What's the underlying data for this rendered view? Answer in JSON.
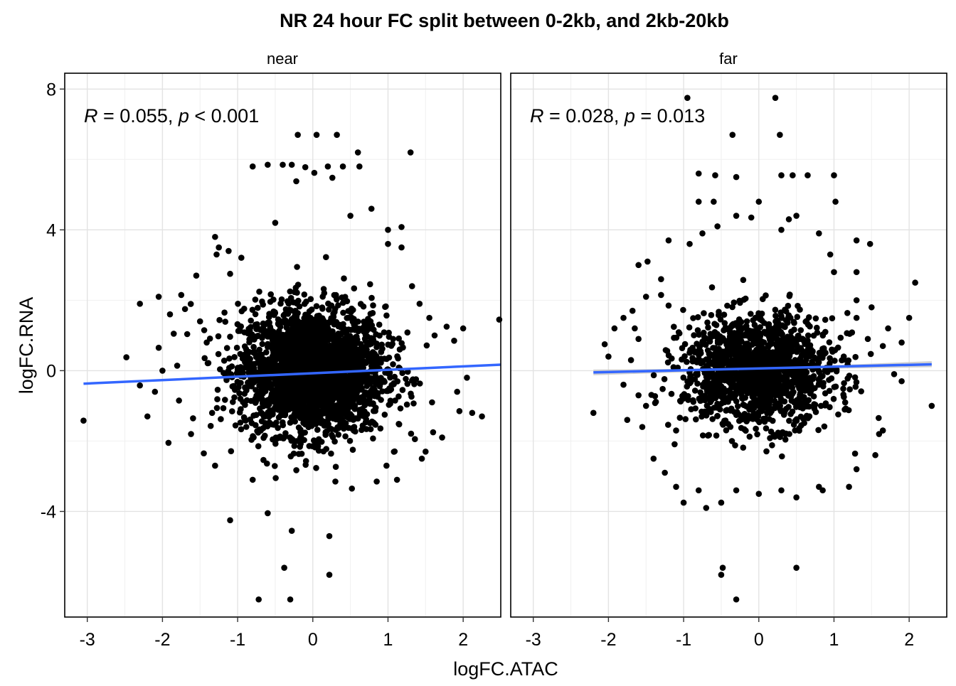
{
  "chart_data": {
    "type": "scatter",
    "title": "NR 24 hour FC split between 0-2kb, and 2kb-20kb",
    "xlabel": "logFC.ATAC",
    "ylabel": "logFC.RNA",
    "xlim": [
      -3.3,
      2.5
    ],
    "ylim": [
      -7.0,
      8.45
    ],
    "x_ticks": [
      -3,
      -2,
      -1,
      0,
      1,
      2
    ],
    "y_ticks": [
      -4,
      0,
      4,
      8
    ],
    "x_tick_labels": [
      "-3",
      "-2",
      "-1",
      "0",
      "1",
      "2"
    ],
    "y_tick_labels": [
      "-4",
      "0",
      "4",
      "8"
    ],
    "grid": true,
    "point_color": "#000000",
    "trend_color": "#3366FF",
    "ci_color": "#c8c8c8",
    "panels": [
      {
        "name": "near",
        "annotation": {
          "r_label": "R",
          "r_value": " = 0.055, ",
          "p_label": "p",
          "p_value": " < 0.001"
        },
        "trend": {
          "x": [
            -3.05,
            2.5
          ],
          "y": [
            -0.37,
            0.17
          ]
        },
        "cloud": {
          "center": [
            0.0,
            0.0
          ],
          "sd": [
            0.48,
            0.9
          ],
          "n": 2600,
          "range_x": [
            -2.3,
            2.0
          ],
          "range_y": [
            -3.5,
            4.3
          ]
        },
        "points": [
          [
            -3.05,
            -1.42
          ],
          [
            -2.3,
            1.9
          ],
          [
            -2.48,
            0.38
          ],
          [
            -2.2,
            -1.3
          ],
          [
            -1.92,
            -2.05
          ],
          [
            -1.45,
            -2.35
          ],
          [
            -1.1,
            -4.25
          ],
          [
            -0.6,
            -4.05
          ],
          [
            -0.28,
            -4.55
          ],
          [
            0.22,
            -4.7
          ],
          [
            -0.38,
            -5.6
          ],
          [
            0.22,
            -5.8
          ],
          [
            -0.72,
            -6.5
          ],
          [
            -0.3,
            -6.5
          ],
          [
            -0.2,
            6.7
          ],
          [
            0.05,
            6.7
          ],
          [
            0.32,
            6.7
          ],
          [
            -0.8,
            5.8
          ],
          [
            -0.6,
            5.85
          ],
          [
            -0.4,
            5.85
          ],
          [
            -0.28,
            5.85
          ],
          [
            -0.1,
            5.78
          ],
          [
            0.2,
            5.8
          ],
          [
            0.4,
            5.8
          ],
          [
            0.62,
            5.8
          ],
          [
            0.6,
            6.2
          ],
          [
            1.3,
            6.2
          ],
          [
            -0.22,
            5.38
          ],
          [
            0.02,
            5.62
          ],
          [
            0.26,
            5.48
          ],
          [
            -1.25,
            3.5
          ],
          [
            -1.3,
            3.8
          ],
          [
            -1.28,
            3.3
          ],
          [
            -1.12,
            3.4
          ],
          [
            1.18,
            3.5
          ],
          [
            1.0,
            4.0
          ],
          [
            1.0,
            3.6
          ],
          [
            1.18,
            4.08
          ],
          [
            0.78,
            4.6
          ],
          [
            -1.55,
            2.7
          ],
          [
            -1.75,
            2.15
          ],
          [
            -2.05,
            2.1
          ],
          [
            -1.9,
            1.6
          ],
          [
            -1.85,
            1.05
          ],
          [
            1.42,
            1.9
          ],
          [
            1.55,
            1.5
          ],
          [
            1.78,
            1.25
          ],
          [
            2.0,
            1.2
          ],
          [
            2.48,
            1.45
          ],
          [
            1.88,
            0.85
          ],
          [
            1.6,
            -1.75
          ],
          [
            2.25,
            -1.3
          ],
          [
            2.12,
            -1.2
          ],
          [
            1.95,
            -1.15
          ],
          [
            1.72,
            -1.9
          ],
          [
            1.45,
            -2.5
          ],
          [
            1.12,
            -3.1
          ],
          [
            0.52,
            -3.35
          ],
          [
            0.85,
            -3.15
          ],
          [
            -1.62,
            -1.8
          ],
          [
            -1.78,
            -0.85
          ],
          [
            -2.1,
            -0.6
          ],
          [
            -2.0,
            0.0
          ],
          [
            1.5,
            -2.3
          ],
          [
            -1.7,
            1.75
          ],
          [
            -0.8,
            -3.1
          ],
          [
            0.3,
            -3.15
          ],
          [
            -1.3,
            -2.7
          ],
          [
            0.98,
            -2.7
          ],
          [
            -1.5,
            1.4
          ],
          [
            1.32,
            2.4
          ],
          [
            -1.1,
            2.75
          ],
          [
            1.62,
            1.0
          ],
          [
            -2.05,
            0.65
          ],
          [
            -2.3,
            -0.42
          ],
          [
            1.92,
            -0.6
          ],
          [
            2.05,
            -0.2
          ],
          [
            -0.5,
            4.2
          ],
          [
            0.5,
            4.4
          ]
        ]
      },
      {
        "name": "far",
        "annotation": {
          "r_label": "R",
          "r_value": " = 0.028, ",
          "p_label": "p",
          "p_value": " = 0.013"
        },
        "trend": {
          "x": [
            -2.2,
            2.3
          ],
          "y": [
            -0.05,
            0.18
          ]
        },
        "ci": {
          "x": [
            -2.2,
            0.0,
            2.3
          ],
          "lower": [
            -0.13,
            0.02,
            0.1
          ],
          "upper": [
            0.03,
            0.07,
            0.27
          ]
        },
        "cloud": {
          "center": [
            0.0,
            0.0
          ],
          "sd": [
            0.5,
            0.78
          ],
          "n": 1500,
          "range_x": [
            -1.85,
            1.85
          ],
          "range_y": [
            -3.3,
            3.1
          ]
        },
        "points": [
          [
            -0.95,
            7.75
          ],
          [
            0.22,
            7.75
          ],
          [
            -0.35,
            6.7
          ],
          [
            0.28,
            6.7
          ],
          [
            -0.8,
            5.6
          ],
          [
            -0.58,
            5.55
          ],
          [
            -0.3,
            5.5
          ],
          [
            0.3,
            5.55
          ],
          [
            0.45,
            5.55
          ],
          [
            0.65,
            5.55
          ],
          [
            1.0,
            5.55
          ],
          [
            -0.8,
            4.8
          ],
          [
            -0.6,
            4.8
          ],
          [
            0.0,
            4.8
          ],
          [
            1.02,
            4.8
          ],
          [
            0.5,
            4.4
          ],
          [
            0.4,
            4.3
          ],
          [
            -0.1,
            4.35
          ],
          [
            -0.3,
            4.4
          ],
          [
            -0.75,
            3.9
          ],
          [
            0.8,
            3.9
          ],
          [
            0.3,
            4.0
          ],
          [
            -0.55,
            4.1
          ],
          [
            -1.2,
            3.7
          ],
          [
            -0.92,
            3.6
          ],
          [
            1.3,
            3.7
          ],
          [
            1.48,
            3.6
          ],
          [
            -1.6,
            3.0
          ],
          [
            -1.48,
            3.1
          ],
          [
            0.95,
            3.3
          ],
          [
            1.0,
            2.8
          ],
          [
            -1.5,
            2.1
          ],
          [
            -1.3,
            2.15
          ],
          [
            -1.2,
            1.85
          ],
          [
            -1.68,
            1.7
          ],
          [
            -1.8,
            1.5
          ],
          [
            -1.65,
            1.2
          ],
          [
            -1.92,
            1.2
          ],
          [
            -1.6,
            0.9
          ],
          [
            2.08,
            2.5
          ],
          [
            2.0,
            1.5
          ],
          [
            1.3,
            2.0
          ],
          [
            1.5,
            1.8
          ],
          [
            1.3,
            1.5
          ],
          [
            1.72,
            1.2
          ],
          [
            1.45,
            0.9
          ],
          [
            1.65,
            0.7
          ],
          [
            1.9,
            0.8
          ],
          [
            -2.2,
            -1.2
          ],
          [
            -2.05,
            0.75
          ],
          [
            -1.7,
            0.3
          ],
          [
            -2.0,
            0.4
          ],
          [
            -1.8,
            -0.4
          ],
          [
            -1.6,
            -0.7
          ],
          [
            -1.5,
            -1.0
          ],
          [
            -1.55,
            -1.6
          ],
          [
            -1.1,
            -1.7
          ],
          [
            -1.75,
            -1.4
          ],
          [
            -1.4,
            -2.5
          ],
          [
            -1.25,
            -2.9
          ],
          [
            -1.1,
            -3.3
          ],
          [
            -0.8,
            -3.4
          ],
          [
            -1.0,
            -3.75
          ],
          [
            -0.5,
            -3.75
          ],
          [
            -0.7,
            -3.9
          ],
          [
            -0.3,
            -3.4
          ],
          [
            0.0,
            -3.5
          ],
          [
            0.3,
            -3.4
          ],
          [
            0.5,
            -3.6
          ],
          [
            0.8,
            -3.3
          ],
          [
            0.85,
            -3.4
          ],
          [
            1.2,
            -3.3
          ],
          [
            1.3,
            -2.8
          ],
          [
            1.55,
            -2.4
          ],
          [
            1.6,
            -1.8
          ],
          [
            1.65,
            -1.7
          ],
          [
            2.3,
            -1.0
          ],
          [
            1.8,
            -0.1
          ],
          [
            1.9,
            -0.3
          ],
          [
            -0.48,
            -5.6
          ],
          [
            -0.5,
            -5.8
          ],
          [
            0.5,
            -5.6
          ],
          [
            -0.3,
            -6.5
          ],
          [
            1.3,
            2.8
          ],
          [
            -1.3,
            2.6
          ]
        ]
      }
    ]
  }
}
